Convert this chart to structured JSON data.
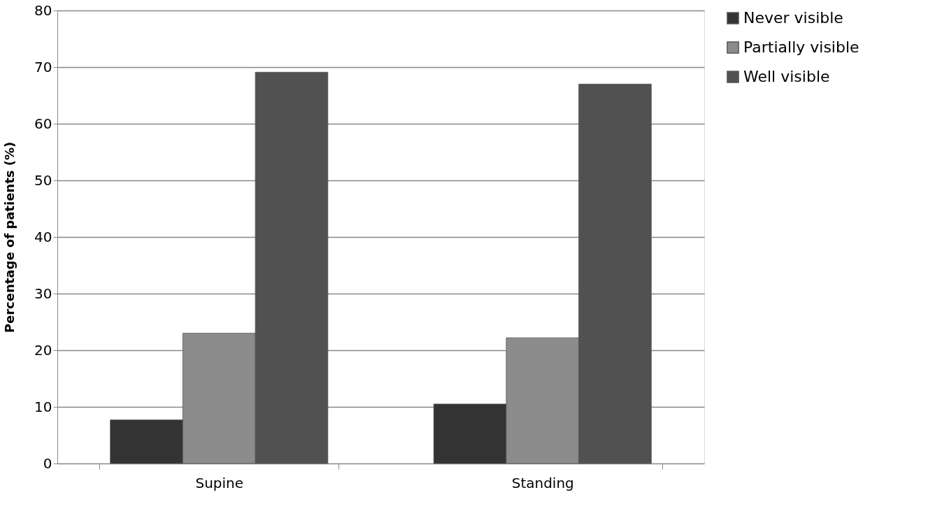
{
  "chart_data": {
    "type": "bar",
    "ylabel": "Percentage of patients (%)",
    "categories": [
      "Supine",
      "Standing"
    ],
    "series": [
      {
        "name": "Never visible",
        "color": "#333333",
        "values": [
          7.7,
          10.5
        ]
      },
      {
        "name": "Partially visible",
        "color": "#8c8c8c",
        "values": [
          23,
          22.2
        ]
      },
      {
        "name": "Well visible",
        "color": "#515151",
        "values": [
          69.1,
          67
        ]
      }
    ],
    "ylim": [
      0,
      80
    ],
    "yticks": [
      0,
      10,
      20,
      30,
      40,
      50,
      60,
      70,
      80
    ],
    "grid": "y",
    "legend": "right"
  }
}
